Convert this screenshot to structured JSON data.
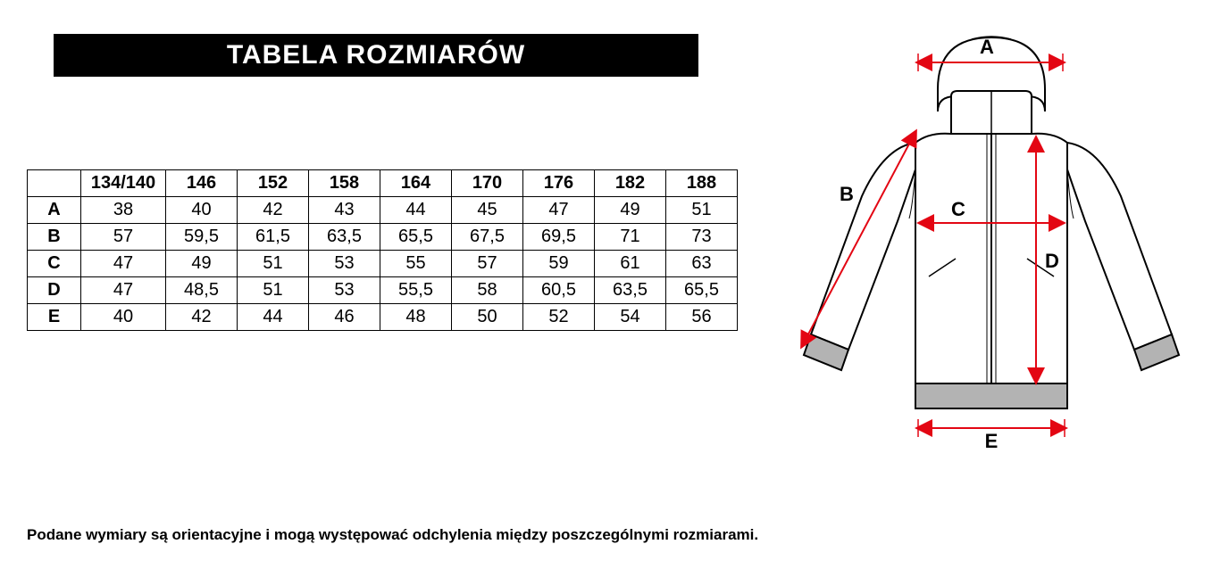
{
  "title": "TABELA ROZMIARÓW",
  "table": {
    "columns": [
      "134/140",
      "146",
      "152",
      "158",
      "164",
      "170",
      "176",
      "182",
      "188"
    ],
    "rows": [
      {
        "label": "A",
        "values": [
          "38",
          "40",
          "42",
          "43",
          "44",
          "45",
          "47",
          "49",
          "51"
        ]
      },
      {
        "label": "B",
        "values": [
          "57",
          "59,5",
          "61,5",
          "63,5",
          "65,5",
          "67,5",
          "69,5",
          "71",
          "73"
        ]
      },
      {
        "label": "C",
        "values": [
          "47",
          "49",
          "51",
          "53",
          "55",
          "57",
          "59",
          "61",
          "63"
        ]
      },
      {
        "label": "D",
        "values": [
          "47",
          "48,5",
          "51",
          "53",
          "55,5",
          "58",
          "60,5",
          "63,5",
          "65,5"
        ]
      },
      {
        "label": "E",
        "values": [
          "40",
          "42",
          "44",
          "46",
          "48",
          "50",
          "52",
          "54",
          "56"
        ]
      }
    ],
    "border_color": "#000000",
    "font_size": 20
  },
  "footnote": "Podane wymiary są orientacyjne i mogą występować odchylenia między poszczególnymi rozmiarami.",
  "diagram": {
    "outline_color": "#000000",
    "fill_color": "#ffffff",
    "cuff_fill": "#b3b3b3",
    "arrow_color": "#e30613",
    "label_color": "#000000",
    "labels": {
      "A": "A",
      "B": "B",
      "C": "C",
      "D": "D",
      "E": "E"
    }
  },
  "colors": {
    "title_bg": "#000000",
    "title_fg": "#ffffff",
    "page_bg": "#ffffff"
  }
}
